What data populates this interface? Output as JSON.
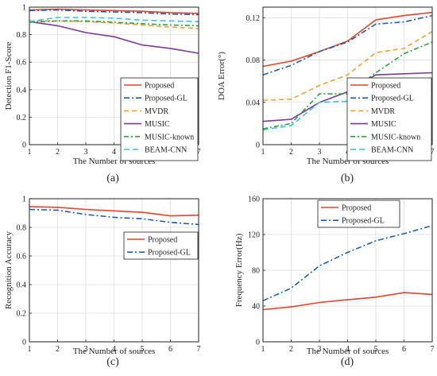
{
  "colors": {
    "Proposed": "#e8412c",
    "Proposed-GL": "#1f5fa8",
    "MVDR": "#f5a033",
    "MUSIC": "#7b3a9a",
    "MUSIC-known": "#2ea040",
    "BEAM-CNN": "#3ec1de"
  },
  "chart_data": [
    {
      "type": "line",
      "panel_label": "(a)",
      "xlabel": "The Number of sources",
      "ylabel": "Detection F1-Score",
      "xlim": [
        1,
        7
      ],
      "ylim": [
        0,
        1
      ],
      "xticks": [
        "1",
        "2",
        "3",
        "4",
        "5",
        "6",
        "7"
      ],
      "yticks": [
        "0",
        "0.2",
        "0.4",
        "0.6",
        "0.8",
        "1"
      ],
      "ytick_values": [
        0,
        0.2,
        0.4,
        0.6,
        0.8,
        1
      ],
      "grid": true,
      "legend": "center-right",
      "x": [
        1,
        2,
        3,
        4,
        5,
        6,
        7
      ],
      "series": [
        {
          "name": "Proposed",
          "values": [
            0.98,
            0.985,
            0.98,
            0.975,
            0.97,
            0.96,
            0.955
          ]
        },
        {
          "name": "Proposed-GL",
          "values": [
            0.975,
            0.98,
            0.97,
            0.965,
            0.96,
            0.95,
            0.945
          ]
        },
        {
          "name": "MVDR",
          "values": [
            0.9,
            0.9,
            0.895,
            0.885,
            0.87,
            0.855,
            0.845
          ]
        },
        {
          "name": "MUSIC",
          "values": [
            0.895,
            0.865,
            0.815,
            0.785,
            0.725,
            0.7,
            0.665
          ]
        },
        {
          "name": "MUSIC-known",
          "values": [
            0.89,
            0.9,
            0.9,
            0.89,
            0.88,
            0.87,
            0.865
          ]
        },
        {
          "name": "BEAM-CNN",
          "values": [
            0.895,
            0.925,
            0.925,
            0.92,
            0.905,
            0.9,
            0.895
          ]
        }
      ]
    },
    {
      "type": "line",
      "panel_label": "(b)",
      "xlabel": "The Number of sources",
      "ylabel": "DOA Error(°)",
      "xlim": [
        1,
        7
      ],
      "ylim": [
        0,
        0.13
      ],
      "xticks": [
        "1",
        "2",
        "3",
        "4",
        "5",
        "6",
        "7"
      ],
      "yticks": [
        "0",
        "0.04",
        "0.08",
        "0.12"
      ],
      "ytick_values": [
        0,
        0.04,
        0.08,
        0.12
      ],
      "grid": true,
      "legend": "bottom-right",
      "x": [
        1,
        2,
        3,
        4,
        5,
        6,
        7
      ],
      "series": [
        {
          "name": "Proposed",
          "values": [
            0.074,
            0.079,
            0.088,
            0.098,
            0.118,
            0.122,
            0.125
          ]
        },
        {
          "name": "Proposed-GL",
          "values": [
            0.066,
            0.075,
            0.088,
            0.097,
            0.114,
            0.116,
            0.122
          ]
        },
        {
          "name": "MVDR",
          "values": [
            0.042,
            0.043,
            0.056,
            0.066,
            0.087,
            0.091,
            0.107
          ]
        },
        {
          "name": "MUSIC",
          "values": [
            0.022,
            0.024,
            0.04,
            0.05,
            0.066,
            0.067,
            0.068
          ]
        },
        {
          "name": "MUSIC-known",
          "values": [
            0.015,
            0.02,
            0.048,
            0.048,
            0.068,
            0.086,
            0.097
          ]
        },
        {
          "name": "BEAM-CNN",
          "values": [
            0.014,
            0.018,
            0.04,
            0.041,
            0.049,
            0.051,
            0.052
          ]
        }
      ]
    },
    {
      "type": "line",
      "panel_label": "(c)",
      "xlabel": "The Number of sources",
      "ylabel": "Recognition Accuracy",
      "xlim": [
        1,
        7
      ],
      "ylim": [
        0,
        1
      ],
      "xticks": [
        "1",
        "2",
        "3",
        "4",
        "5",
        "6",
        "7"
      ],
      "yticks": [
        "0",
        "0.2",
        "0.4",
        "0.6",
        "0.8",
        "1"
      ],
      "ytick_values": [
        0,
        0.2,
        0.4,
        0.6,
        0.8,
        1
      ],
      "grid": true,
      "legend": "center-right",
      "x": [
        1,
        2,
        3,
        4,
        5,
        6,
        7
      ],
      "series": [
        {
          "name": "Proposed",
          "values": [
            0.945,
            0.94,
            0.925,
            0.915,
            0.905,
            0.88,
            0.885
          ]
        },
        {
          "name": "Proposed-GL",
          "values": [
            0.925,
            0.92,
            0.89,
            0.87,
            0.86,
            0.835,
            0.82
          ]
        }
      ]
    },
    {
      "type": "line",
      "panel_label": "(d)",
      "xlabel": "The Number of sources",
      "ylabel": "Frequency Error(Hz)",
      "xlim": [
        1,
        7
      ],
      "ylim": [
        0,
        160
      ],
      "xticks": [
        "1",
        "2",
        "3",
        "4",
        "5",
        "6",
        "7"
      ],
      "yticks": [
        "0",
        "40",
        "80",
        "120",
        "160"
      ],
      "ytick_values": [
        0,
        40,
        80,
        120,
        160
      ],
      "grid": true,
      "legend": "top-left",
      "x": [
        1,
        2,
        3,
        4,
        5,
        6,
        7
      ],
      "series": [
        {
          "name": "Proposed",
          "values": [
            36,
            39,
            44,
            47,
            50,
            55,
            53
          ]
        },
        {
          "name": "Proposed-GL",
          "values": [
            46,
            60,
            85,
            100,
            113,
            121,
            130
          ]
        }
      ]
    }
  ]
}
